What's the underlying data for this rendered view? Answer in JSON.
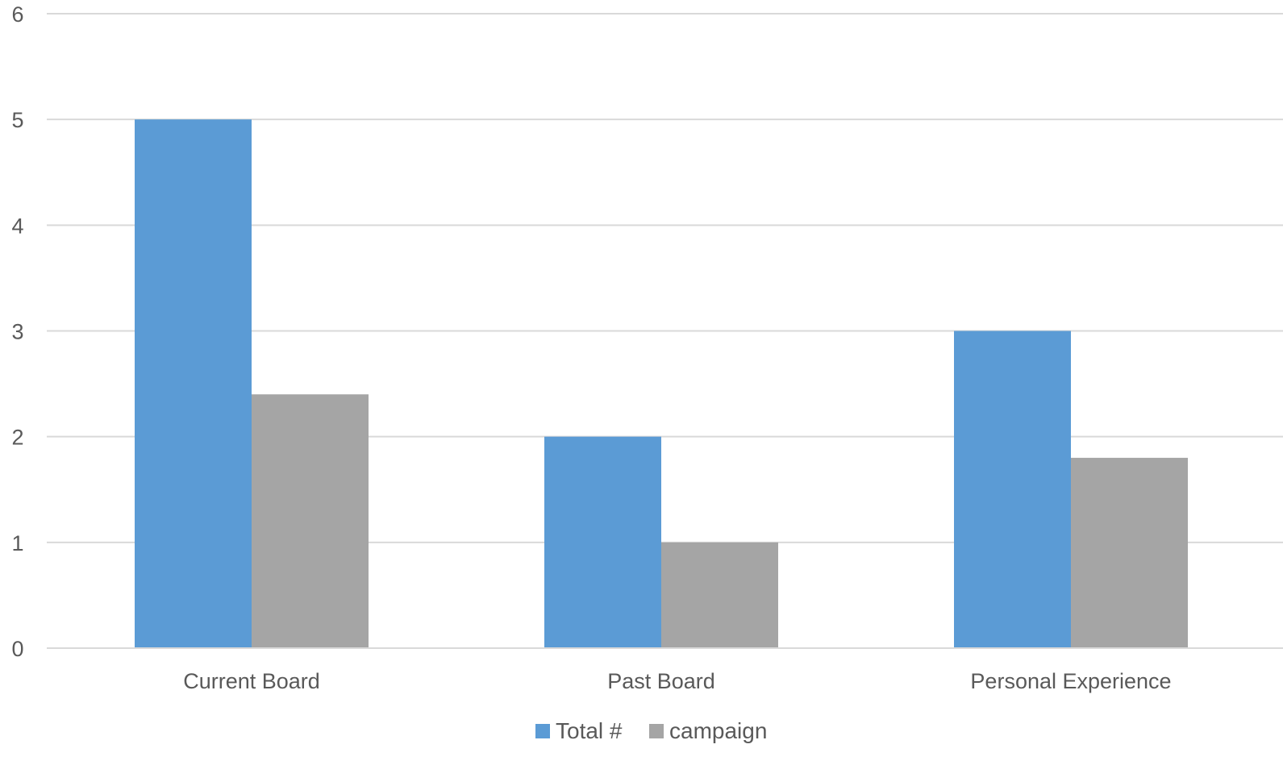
{
  "chart_data": {
    "type": "bar",
    "title": "",
    "xlabel": "",
    "ylabel": "",
    "categories": [
      "Current Board",
      "Past Board",
      "Personal Experience"
    ],
    "series": [
      {
        "name": "Total #",
        "values": [
          5,
          2,
          3
        ],
        "color": "#5b9bd5"
      },
      {
        "name": "campaign",
        "values": [
          2.4,
          1,
          1.8
        ],
        "color": "#a5a5a5"
      }
    ],
    "ylim": [
      0,
      6
    ],
    "yticks": [
      "0",
      "1",
      "2",
      "3",
      "4",
      "5",
      "6"
    ],
    "grid": true,
    "legend_position": "bottom"
  },
  "colors": {
    "gridline": "#d9d9d9",
    "text": "#595959"
  }
}
